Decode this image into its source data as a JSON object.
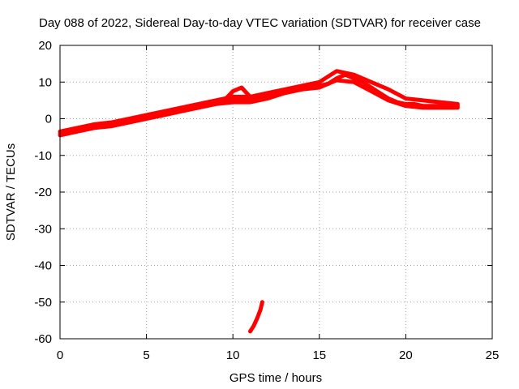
{
  "chart_data": {
    "type": "line",
    "title": "Day 088 of 2022, Sidereal Day-to-day VTEC variation (SDTVAR) for receiver case",
    "xlabel": "GPS time / hours",
    "ylabel": "SDTVAR / TECUs",
    "xlim": [
      0,
      25
    ],
    "ylim": [
      -60,
      20
    ],
    "xticks": [
      0,
      5,
      10,
      15,
      20,
      25
    ],
    "yticks": [
      20,
      10,
      0,
      -10,
      -20,
      -30,
      -40,
      -50,
      -60
    ],
    "grid": true,
    "legend": "none",
    "color": "#ff0000",
    "series": [
      {
        "name": "main-trace",
        "x": [
          0,
          0.5,
          1,
          1.5,
          2,
          2.5,
          3,
          3.5,
          4,
          4.5,
          5,
          5.5,
          6,
          6.5,
          7,
          7.5,
          8,
          8.5,
          9,
          9.5,
          10,
          10.5,
          11,
          11.5,
          12,
          12.5,
          13,
          13.5,
          14,
          14.5,
          15,
          15.5,
          16,
          16.5,
          17,
          17.5,
          18,
          18.5,
          19,
          19.5,
          20,
          20.5,
          21,
          21.5,
          22,
          22.5,
          23
        ],
        "y": [
          -4,
          -3.5,
          -3,
          -2.5,
          -2,
          -2,
          -1.5,
          -1,
          -0.5,
          0,
          0.5,
          1,
          1.5,
          2,
          2.5,
          3,
          3.5,
          4,
          4.5,
          5,
          5,
          5,
          5,
          5.5,
          6,
          7,
          7.5,
          8,
          8.5,
          9,
          9,
          9.5,
          11,
          12,
          11,
          10,
          8.5,
          7,
          5.5,
          4.5,
          4,
          4,
          3.5,
          3.5,
          3.5,
          3.5,
          3.5
        ]
      },
      {
        "name": "lower-band",
        "x": [
          0,
          1,
          2,
          3,
          4,
          5,
          6,
          7,
          8,
          9,
          10,
          11,
          12,
          13,
          14,
          15,
          16,
          17,
          18,
          19,
          20,
          21,
          22,
          23
        ],
        "y": [
          -4.5,
          -3.5,
          -2.5,
          -2,
          -1,
          0,
          1,
          2,
          3,
          4,
          4.5,
          4.5,
          5.5,
          7,
          8,
          8.5,
          10.5,
          10,
          7.5,
          5,
          3.5,
          3,
          3,
          3
        ]
      },
      {
        "name": "upper-band",
        "x": [
          0,
          1,
          2,
          3,
          4,
          5,
          6,
          7,
          8,
          9,
          10,
          11,
          12,
          13,
          14,
          15,
          16,
          17,
          18,
          19,
          20,
          21,
          22,
          23
        ],
        "y": [
          -3.5,
          -2.5,
          -1.5,
          -1,
          0,
          1,
          2,
          3,
          4,
          5,
          6,
          6,
          7,
          8,
          9,
          10,
          13,
          12,
          10,
          8,
          5.5,
          5,
          4.5,
          4
        ]
      },
      {
        "name": "peak-spike",
        "x": [
          9.5,
          10,
          10.5,
          11
        ],
        "y": [
          5,
          7.5,
          8.5,
          6
        ]
      },
      {
        "name": "outlier-segment",
        "x": [
          11,
          11.2,
          11.4,
          11.6,
          11.7
        ],
        "y": [
          -58,
          -56.5,
          -54.5,
          -52,
          -50
        ]
      }
    ]
  }
}
